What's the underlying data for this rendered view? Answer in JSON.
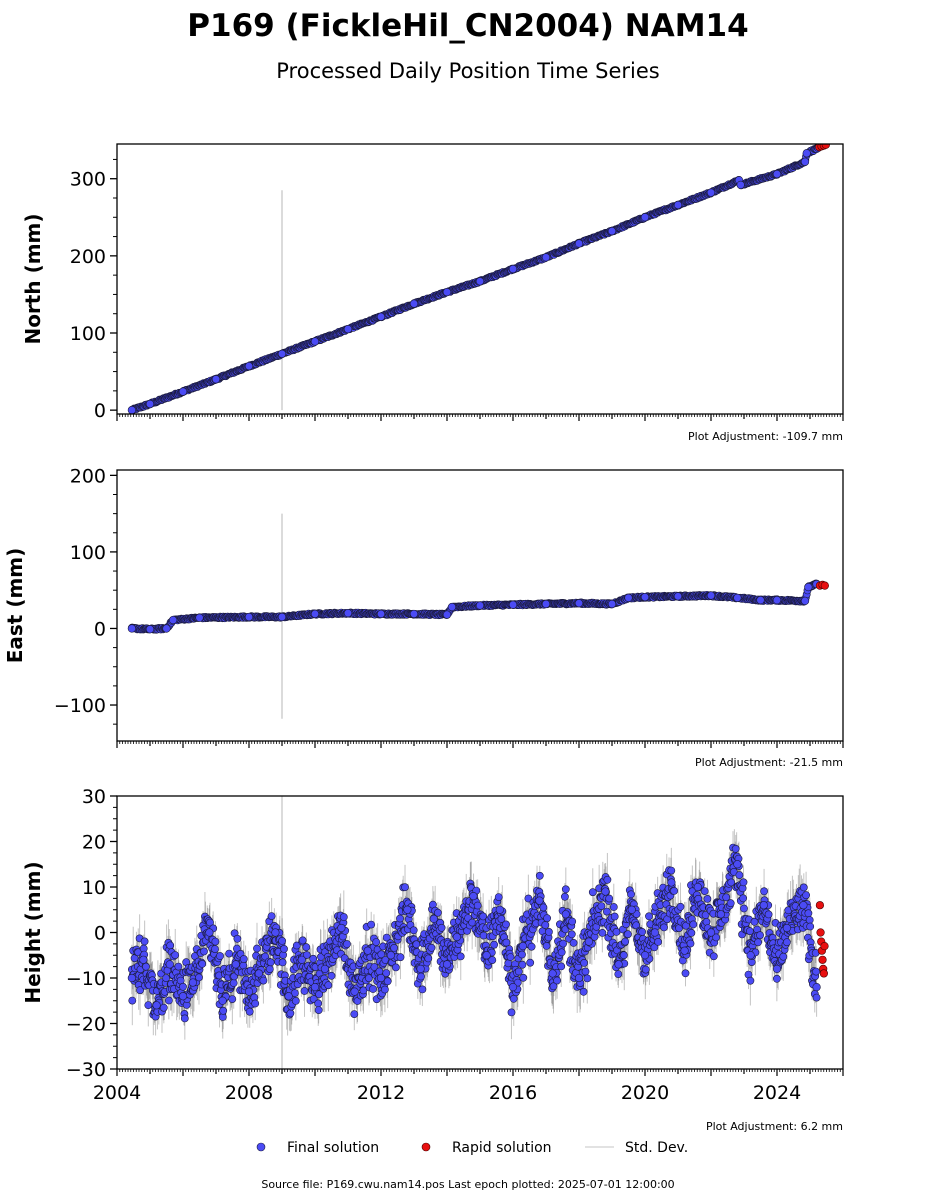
{
  "title": "P169 (FickleHil_CN2004) NAM14",
  "subtitle": "Processed Daily Position Time Series",
  "legend": {
    "final": "Final solution",
    "rapid": "Rapid solution",
    "std": "Std. Dev."
  },
  "footer": "Source file: P169.cwu.nam14.pos  Last epoch plotted: 2025-07-01 12:00:00",
  "colors": {
    "final": "#4b4bf5",
    "rapid": "#e81010",
    "std": "#b0b0b0",
    "marker_edge": "#1a1a3a"
  },
  "chart_data": [
    {
      "type": "scatter",
      "ylabel": "North (mm)",
      "adjustment": "Plot Adjustment: -109.7 mm",
      "xlim": [
        2004.0,
        2026.0
      ],
      "ylim": [
        -5,
        345
      ],
      "yticks": [
        0,
        100,
        200,
        300
      ],
      "ytick_labels": [
        "0",
        "100",
        "200",
        "300"
      ],
      "xticks": [
        2004,
        2008,
        2012,
        2016,
        2020,
        2024
      ],
      "xtick_labels": [],
      "series": [
        {
          "name": "Final solution",
          "x": [
            2004.45,
            2005.0,
            2006.0,
            2007.0,
            2008.0,
            2009.0,
            2010.0,
            2011.0,
            2012.0,
            2013.0,
            2014.0,
            2015.0,
            2016.0,
            2017.0,
            2018.0,
            2019.0,
            2020.0,
            2021.0,
            2022.0,
            2022.85,
            2022.9,
            2024.0,
            2024.85,
            2024.9,
            2025.25
          ],
          "y": [
            0,
            8,
            24,
            40,
            57,
            73,
            89,
            105,
            121,
            138,
            153,
            167,
            183,
            198,
            216,
            232,
            250,
            266,
            282,
            298,
            292,
            306,
            322,
            333,
            340
          ]
        },
        {
          "name": "Rapid solution",
          "x": [
            2025.28,
            2025.35,
            2025.42,
            2025.48
          ],
          "y": [
            341,
            342,
            343,
            344
          ]
        }
      ],
      "std_spike": {
        "x": 2009.0,
        "y_low": 0,
        "y_high": 285
      }
    },
    {
      "type": "scatter",
      "ylabel": "East (mm)",
      "adjustment": "Plot Adjustment: -21.5 mm",
      "xlim": [
        2004.0,
        2026.0
      ],
      "ylim": [
        -147,
        207
      ],
      "yticks": [
        -100,
        0,
        100,
        200
      ],
      "ytick_labels": [
        "−100",
        "0",
        "100",
        "200"
      ],
      "xticks": [
        2004,
        2008,
        2012,
        2016,
        2020,
        2024
      ],
      "xtick_labels": [],
      "series": [
        {
          "name": "Final solution",
          "x": [
            2004.45,
            2005.0,
            2005.5,
            2005.7,
            2006.5,
            2008.0,
            2009.0,
            2010.0,
            2011.0,
            2012.0,
            2013.0,
            2014.0,
            2014.15,
            2015.0,
            2016.0,
            2017.0,
            2018.0,
            2019.0,
            2019.5,
            2020.0,
            2021.0,
            2022.0,
            2022.8,
            2023.5,
            2024.0,
            2024.85,
            2024.95,
            2025.2
          ],
          "y": [
            0,
            -1,
            0,
            11,
            14,
            15,
            15,
            19,
            20,
            19,
            19,
            18,
            28,
            30,
            31,
            32,
            33,
            32,
            40,
            41,
            42,
            43,
            40,
            37,
            37,
            36,
            54,
            58
          ]
        },
        {
          "name": "Rapid solution",
          "x": [
            2025.3,
            2025.38,
            2025.45
          ],
          "y": [
            56,
            57,
            56
          ]
        }
      ],
      "std_spike": {
        "x": 2009.0,
        "y_low": -118,
        "y_high": 150
      }
    },
    {
      "type": "scatter",
      "ylabel": "Height (mm)",
      "adjustment": "Plot Adjustment: 6.2 mm",
      "xlim": [
        2004.0,
        2026.0
      ],
      "ylim": [
        -30,
        30
      ],
      "yticks": [
        -30,
        -20,
        -10,
        0,
        10,
        20,
        30
      ],
      "ytick_labels": [
        "−30",
        "−20",
        "−10",
        "0",
        "10",
        "20",
        "30"
      ],
      "xticks": [
        2004,
        2008,
        2012,
        2016,
        2020,
        2024
      ],
      "xtick_labels": [
        "2004",
        "2008",
        "2012",
        "2016",
        "2020",
        "2024"
      ],
      "series": [
        {
          "name": "Final solution",
          "x": [
            2004.45,
            2004.8,
            2005.2,
            2005.6,
            2006.0,
            2006.3,
            2006.8,
            2007.2,
            2007.6,
            2008.0,
            2008.3,
            2008.8,
            2009.2,
            2009.6,
            2010.0,
            2010.3,
            2010.8,
            2011.2,
            2011.6,
            2012.0,
            2012.3,
            2012.8,
            2013.2,
            2013.6,
            2014.0,
            2014.3,
            2014.8,
            2015.2,
            2015.6,
            2016.0,
            2016.3,
            2016.8,
            2017.2,
            2017.6,
            2018.0,
            2018.3,
            2018.8,
            2019.2,
            2019.6,
            2020.0,
            2020.3,
            2020.8,
            2021.2,
            2021.6,
            2022.0,
            2022.3,
            2022.8,
            2023.2,
            2023.6,
            2024.0,
            2024.3,
            2024.8,
            2025.2
          ],
          "y": [
            -10,
            -6,
            -16,
            -7,
            -14,
            -11,
            0,
            -15,
            -7,
            -13,
            -9,
            0,
            -14,
            -6,
            -12,
            -8,
            1,
            -13,
            -4,
            -10,
            -5,
            5,
            -8,
            3,
            -7,
            -1,
            8,
            -5,
            5,
            -12,
            -3,
            7,
            -9,
            4,
            -10,
            -2,
            9,
            -7,
            5,
            -5,
            0,
            11,
            -4,
            10,
            0,
            4,
            15,
            -5,
            6,
            -8,
            1,
            6,
            -12
          ]
        },
        {
          "name": "Rapid solution",
          "x": [
            2025.3,
            2025.32,
            2025.34,
            2025.36,
            2025.38,
            2025.4,
            2025.42,
            2025.44
          ],
          "y": [
            6,
            0,
            -2,
            -4,
            -6,
            -8,
            -9,
            -3
          ]
        }
      ],
      "std_spike": {
        "x": 2009.0,
        "y_low": -30,
        "y_high": 30
      }
    }
  ]
}
